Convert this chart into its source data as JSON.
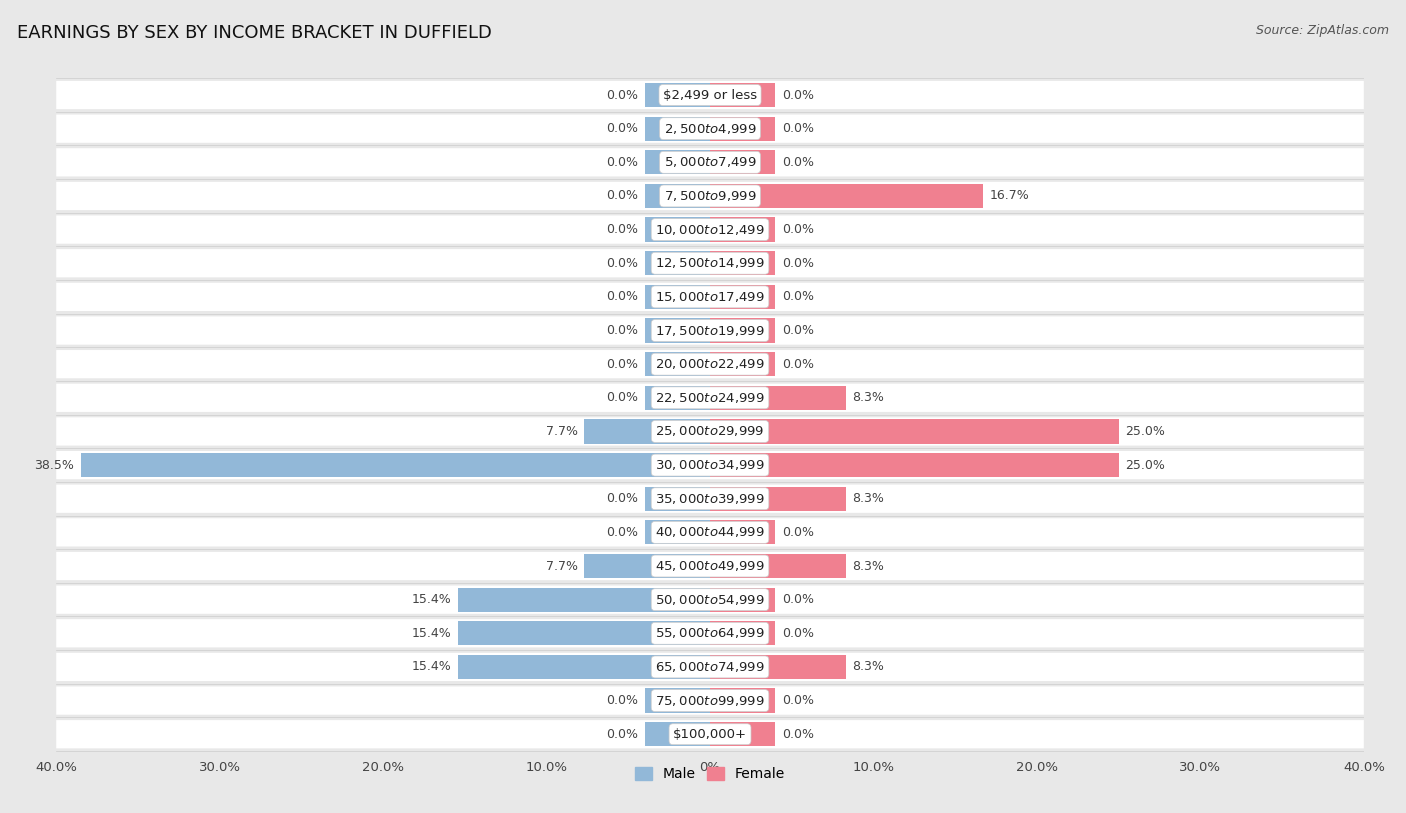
{
  "title": "EARNINGS BY SEX BY INCOME BRACKET IN DUFFIELD",
  "source": "Source: ZipAtlas.com",
  "categories": [
    "$2,499 or less",
    "$2,500 to $4,999",
    "$5,000 to $7,499",
    "$7,500 to $9,999",
    "$10,000 to $12,499",
    "$12,500 to $14,999",
    "$15,000 to $17,499",
    "$17,500 to $19,999",
    "$20,000 to $22,499",
    "$22,500 to $24,999",
    "$25,000 to $29,999",
    "$30,000 to $34,999",
    "$35,000 to $39,999",
    "$40,000 to $44,999",
    "$45,000 to $49,999",
    "$50,000 to $54,999",
    "$55,000 to $64,999",
    "$65,000 to $74,999",
    "$75,000 to $99,999",
    "$100,000+"
  ],
  "male_values": [
    0.0,
    0.0,
    0.0,
    0.0,
    0.0,
    0.0,
    0.0,
    0.0,
    0.0,
    0.0,
    7.7,
    38.5,
    0.0,
    0.0,
    7.7,
    15.4,
    15.4,
    15.4,
    0.0,
    0.0
  ],
  "female_values": [
    0.0,
    0.0,
    0.0,
    16.7,
    0.0,
    0.0,
    0.0,
    0.0,
    0.0,
    8.3,
    25.0,
    25.0,
    8.3,
    0.0,
    8.3,
    0.0,
    0.0,
    8.3,
    0.0,
    0.0
  ],
  "male_color": "#92b8d8",
  "female_color": "#f08090",
  "male_label": "Male",
  "female_label": "Female",
  "xlim": 40.0,
  "min_stub": 4.0,
  "background_color": "#e8e8e8",
  "row_color_light": "#f5f5f5",
  "row_color_dark": "#e0e0e0",
  "title_fontsize": 13,
  "label_fontsize": 9.5,
  "tick_fontsize": 9.5,
  "source_fontsize": 9,
  "value_fontsize": 9
}
